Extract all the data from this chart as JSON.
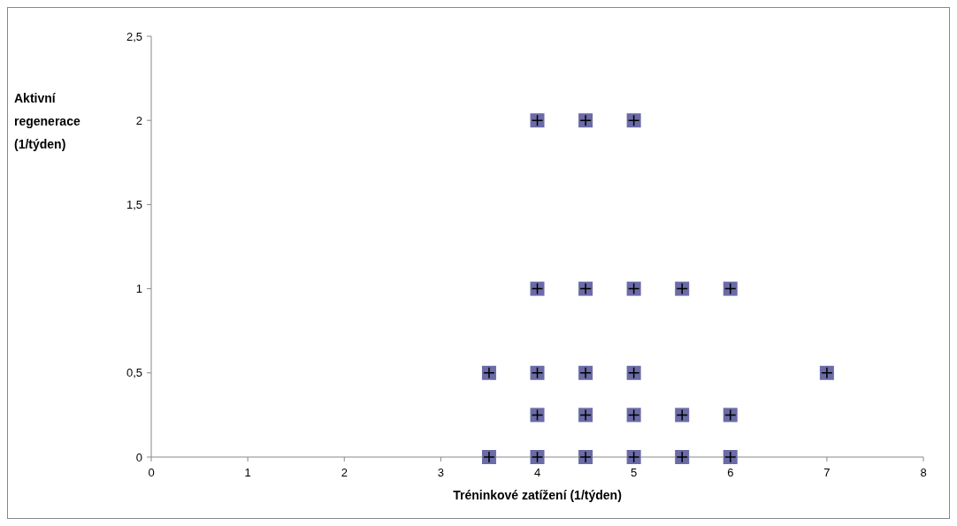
{
  "chart_data": {
    "type": "scatter",
    "xlabel": "Tréninkové zatížení (1/týden)",
    "ylabel": "Aktivní regenerace (1/týden)",
    "x": [
      4,
      4.5,
      5,
      4,
      4.5,
      5,
      5.5,
      6,
      3.5,
      4,
      4.5,
      5,
      7,
      4,
      4.5,
      5,
      5.5,
      6,
      3.5,
      4,
      4.5,
      5,
      5.5,
      6
    ],
    "series": [
      {
        "color": "#6b6ba8",
        "values": [
          2,
          2,
          2,
          1,
          1,
          1,
          1,
          1,
          0.5,
          0.5,
          0.5,
          0.5,
          0.5,
          0.25,
          0.25,
          0.25,
          0.25,
          0.25,
          0,
          0,
          0,
          0,
          0,
          0
        ]
      }
    ],
    "xlim": [
      0,
      8
    ],
    "xticks": [
      0,
      1,
      2,
      3,
      4,
      5,
      6,
      7,
      8
    ],
    "ylim": [
      0,
      2.5
    ],
    "yticks": [
      0,
      {
        "value": 0.5,
        "label": "0,5"
      },
      1,
      {
        "value": 1.5,
        "label": "1,5"
      },
      2,
      {
        "value": 2.5,
        "label": "2,5"
      }
    ],
    "marker": "square",
    "grid": false
  }
}
